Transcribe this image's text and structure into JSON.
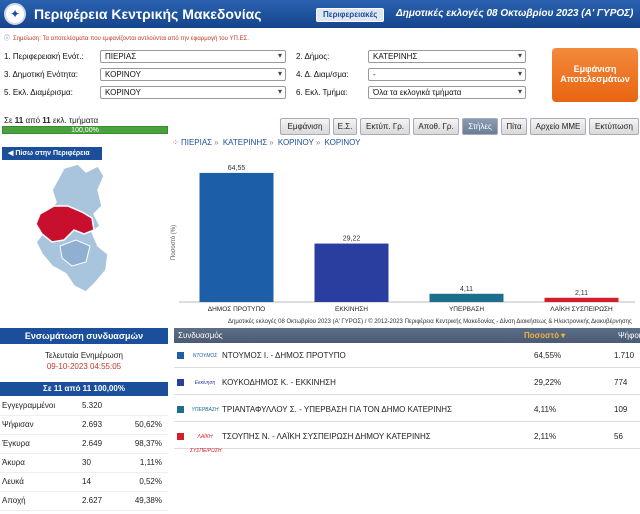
{
  "header": {
    "title": "Περιφέρεια Κεντρικής Μακεδονίας",
    "regions_button": "Περιφερειακές",
    "election_title": "Δημοτικές εκλογές 08 Οκτωβρίου 2023 (Α' ΓΥΡΟΣ)"
  },
  "notice": "Σημείωση: Τα αποτελέσματα που εμφανίζονται αντλούνται από την εφαρμογή του ΥΠ.ΕΣ.",
  "filters": {
    "f1_label": "1. Περιφερειακή Ενότ.:",
    "f1_value": "ΠΙΕΡΙΑΣ",
    "f2_label": "2. Δήμος:",
    "f2_value": "ΚΑΤΕΡΙΝΗΣ",
    "f3_label": "3. Δημοτική Ενότητα:",
    "f3_value": "ΚΟΡΙΝΟΥ",
    "f4_label": "4. Δ. Διαμ/σμα:",
    "f4_value": "-",
    "f5_label": "5. Εκλ. Διαμέρισμα:",
    "f5_value": "ΚΟΡΙΝΟΥ",
    "f6_label": "6. Εκλ. Τμήμα:",
    "f6_value": "Όλα τα εκλογικά τμήματα",
    "show_button": "Εμφάνιση Αποτελεσμάτων"
  },
  "progress": {
    "text_prefix": "Σε",
    "counted": "11",
    "of": "από",
    "total": "11",
    "suffix": "εκλ. τμήματα",
    "percent_label": "100,00%",
    "fraction": 1.0
  },
  "tabs": [
    "Εμφάνιση",
    "Ε.Σ.",
    "Εκτύπ. Γρ.",
    "Αποθ. Γρ.",
    "Στήλες",
    "Πίτα",
    "Αρχείο ΜΜΕ",
    "Εκτύπωση"
  ],
  "active_tab": "Στήλες",
  "back_button": "◀ Πίσω στην Περιφέρεια",
  "breadcrumb": [
    "ΠΙΕΡΙΑΣ",
    "ΚΑΤΕΡΙΝΗΣ",
    "ΚΟΡΙΝΟΥ",
    "ΚΟΡΙΝΟΥ"
  ],
  "chart_data": {
    "type": "bar",
    "categories": [
      "ΔΗΜΟΣ ΠΡΟΤΥΠΟ",
      "ΕΚΚΙΝΗΣΗ",
      "ΥΠΕΡΒΑΣΗ",
      "ΛΑΪΚΗ ΣΥΣΠΕΙΡΩΣΗ"
    ],
    "values": [
      64.55,
      29.22,
      4.11,
      2.11
    ],
    "value_labels": [
      "64,55",
      "29,22",
      "4,11",
      "2,11"
    ],
    "colors": [
      "#1d5ea8",
      "#2a3ea0",
      "#1c6e8c",
      "#d21f2b"
    ],
    "ylabel": "Ποσοστό (%)",
    "ylim": [
      0,
      70
    ],
    "footer": "Δημοτικές εκλογές 08 Οκτωβρίου 2023 (Α' ΓΥΡΟΣ) / © 2012-2023 Περιφέρεια Κεντρικής Μακεδονίας - Δίνση Διοικήσεως & Ηλεκτρονικής Διακυβέρνησης"
  },
  "left_panel": {
    "head": "Ενσωμάτωση συνδυασμών",
    "update_label": "Τελευταία Ενημέρωση",
    "update_time": "09-10-2023 04:55:05",
    "stats_head": "Σε 11 από 11 100,00%",
    "rows": [
      {
        "label": "Εγγεγραμμένοι",
        "value": "5.320",
        "pct": ""
      },
      {
        "label": "Ψήφισαν",
        "value": "2.693",
        "pct": "50,62%"
      },
      {
        "label": "Έγκυρα",
        "value": "2.649",
        "pct": "98,37%"
      },
      {
        "label": "Άκυρα",
        "value": "30",
        "pct": "1,11%"
      },
      {
        "label": "Λευκά",
        "value": "14",
        "pct": "0,52%"
      },
      {
        "label": "Αποχή",
        "value": "2.627",
        "pct": "49,38%"
      }
    ]
  },
  "results": {
    "head_name": "Συνδυασμός",
    "head_pct": "Ποσοστό ▾",
    "head_votes": "Ψήφοι",
    "rows": [
      {
        "name": "ΝΤΟΥΜΟΣ Ι. - ΔΗΜΟΣ ΠΡΟΤΥΠΟ",
        "pct": "64,55%",
        "votes": "1.710",
        "color": "#1d5ea8",
        "logo": "ΝΤΟΥΜΟΣ"
      },
      {
        "name": "ΚΟΥΚΟΔΗΜΟΣ Κ. - ΕΚΚΙΝΗΣΗ",
        "pct": "29,22%",
        "votes": "774",
        "color": "#2a3ea0",
        "logo": "Εκκίνηση"
      },
      {
        "name": "ΤΡΙΑΝΤΑΦΥΛΛΟΥ Σ. - ΥΠΕΡΒΑΣΗ ΓΙΑ ΤΟΝ ΔΗΜΟ ΚΑΤΕΡΙΝΗΣ",
        "pct": "4,11%",
        "votes": "109",
        "color": "#1c6e8c",
        "logo": "ΥΠΕΡΒΑΣΗ"
      },
      {
        "name": "ΤΣΟΥΠΗΣ Ν. - ΛΑΪΚΗ ΣΥΣΠΕΙΡΩΣΗ ΔΗΜΟΥ ΚΑΤΕΡΙΝΗΣ",
        "pct": "2,11%",
        "votes": "56",
        "color": "#d21f2b",
        "logo": "ΛΑΪΚΗ ΣΥΣΠΕΙΡΩΣΗ"
      }
    ]
  }
}
